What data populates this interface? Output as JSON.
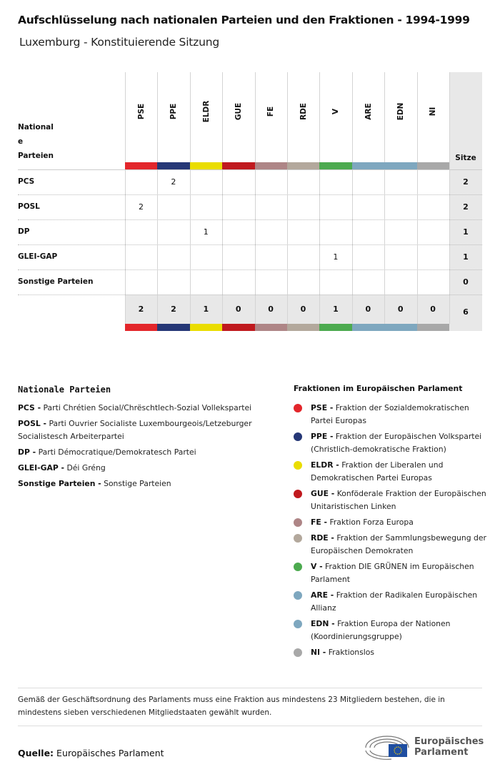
{
  "title": "Aufschlüsselung nach nationalen Parteien und den Fraktionen - 1994-1999",
  "subtitle": "Luxemburg - Konstituierende Sitzung",
  "table": {
    "corner_lines": [
      "National",
      "e",
      "Parteien"
    ],
    "seats_header": "Sitze",
    "groups": [
      {
        "code": "PSE",
        "color": "#e3262b"
      },
      {
        "code": "PPE",
        "color": "#253776"
      },
      {
        "code": "ELDR",
        "color": "#eadd00"
      },
      {
        "code": "GUE",
        "color": "#c0191e"
      },
      {
        "code": "FE",
        "color": "#ae8586"
      },
      {
        "code": "RDE",
        "color": "#b3a89c"
      },
      {
        "code": "V",
        "color": "#4caa4f"
      },
      {
        "code": "ARE",
        "color": "#7ea7bf"
      },
      {
        "code": "EDN",
        "color": "#7ea7bf"
      },
      {
        "code": "NI",
        "color": "#a8a8a8"
      }
    ],
    "rows": [
      {
        "party": "PCS",
        "values": [
          "",
          "2",
          "",
          "",
          "",
          "",
          "",
          "",
          "",
          ""
        ],
        "seats": "2"
      },
      {
        "party": "POSL",
        "values": [
          "2",
          "",
          "",
          "",
          "",
          "",
          "",
          "",
          "",
          ""
        ],
        "seats": "2"
      },
      {
        "party": "DP",
        "values": [
          "",
          "",
          "1",
          "",
          "",
          "",
          "",
          "",
          "",
          ""
        ],
        "seats": "1"
      },
      {
        "party": "GLEI-GAP",
        "values": [
          "",
          "",
          "",
          "",
          "",
          "",
          "1",
          "",
          "",
          ""
        ],
        "seats": "1"
      },
      {
        "party": "Sonstige Parteien",
        "values": [
          "",
          "",
          "",
          "",
          "",
          "",
          "",
          "",
          "",
          ""
        ],
        "seats": "0"
      }
    ],
    "totals": [
      "2",
      "2",
      "1",
      "0",
      "0",
      "0",
      "1",
      "0",
      "0",
      "0"
    ],
    "total_seats": "6"
  },
  "national_parties": {
    "heading": "Nationale Parteien",
    "items": [
      {
        "code": "PCS -",
        "name": "Parti Chrétien Social/Chrëschtlech-Sozial Vollekspartei"
      },
      {
        "code": "POSL -",
        "name": "Parti Ouvrier Socialiste Luxembourgeois/Letzeburger Socialistesch Arbeiterpartei"
      },
      {
        "code": "DP -",
        "name": "Parti Démocratique/Demokratesch Partei"
      },
      {
        "code": "GLEI-GAP -",
        "name": "Déi Gréng"
      },
      {
        "code": "Sonstige Parteien -",
        "name": "Sonstige Parteien"
      }
    ]
  },
  "groups_legend": {
    "heading": "Fraktionen im Europäischen Parlament",
    "items": [
      {
        "code": "PSE -",
        "name": "Fraktion der Sozialdemokratischen Partei Europas",
        "color": "#e3262b"
      },
      {
        "code": "PPE -",
        "name": "Fraktion der Europäischen Volkspartei (Christlich-demokratische Fraktion)",
        "color": "#253776"
      },
      {
        "code": "ELDR -",
        "name": "Fraktion der Liberalen und Demokratischen Partei Europas",
        "color": "#eadd00"
      },
      {
        "code": "GUE -",
        "name": "Konföderale Fraktion der Europäischen Unitaristischen Linken",
        "color": "#c0191e"
      },
      {
        "code": "FE -",
        "name": "Fraktion Forza Europa",
        "color": "#ae8586"
      },
      {
        "code": "RDE -",
        "name": "Fraktion der Sammlungsbewegung der Europäischen Demokraten",
        "color": "#b3a89c"
      },
      {
        "code": "V -",
        "name": "Fraktion DIE GRÜNEN im Europäischen Parlament",
        "color": "#4caa4f"
      },
      {
        "code": "ARE -",
        "name": "Fraktion der Radikalen Europäischen Allianz",
        "color": "#7ea7bf"
      },
      {
        "code": "EDN -",
        "name": "Fraktion Europa der Nationen (Koordinierungsgruppe)",
        "color": "#7ea7bf"
      },
      {
        "code": "NI -",
        "name": "Fraktionslos",
        "color": "#a8a8a8"
      }
    ]
  },
  "note": "Gemäß der Geschäftsordnung des Parlaments muss eine Fraktion aus mindestens 23 Mitgliedern bestehen, die in mindestens sieben verschiedenen Mitgliedstaaten gewählt wurden.",
  "source_label": "Quelle:",
  "source_value": "Europäisches Parlament",
  "logo_text": "Europäisches Parlament"
}
